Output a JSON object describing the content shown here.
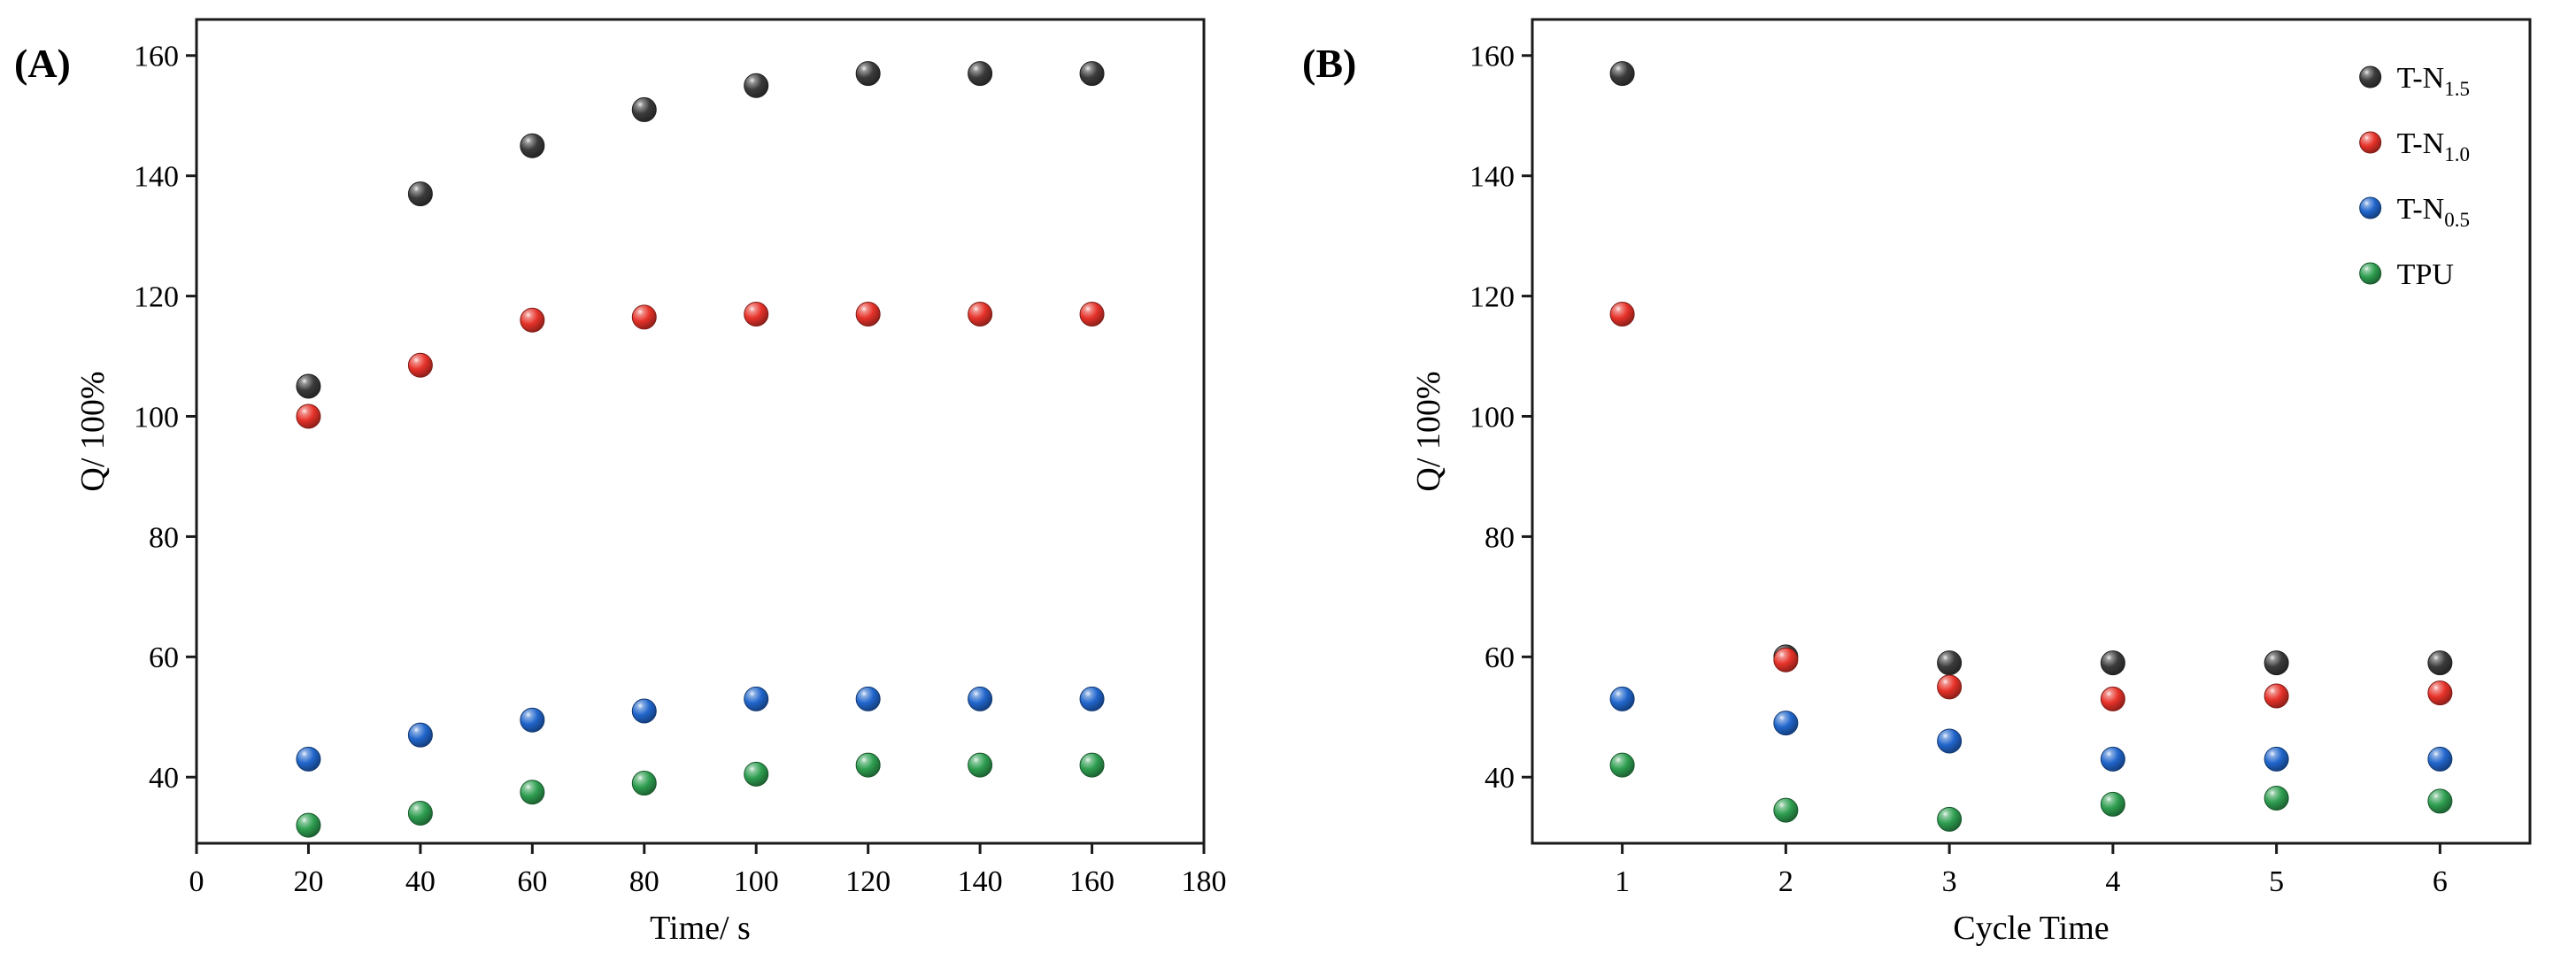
{
  "figure": {
    "background": "#ffffff",
    "axis_color": "#1a1a1a"
  },
  "chart_data": [
    {
      "id": "A",
      "type": "scatter",
      "panel_label": "(A)",
      "title": "",
      "xlabel": "Time/ s",
      "ylabel": "Q/ 100%",
      "xlim": [
        0,
        180
      ],
      "ylim": [
        29,
        166
      ],
      "xticks": [
        0,
        20,
        40,
        60,
        80,
        100,
        120,
        140,
        160,
        180
      ],
      "yticks": [
        40,
        60,
        80,
        100,
        120,
        140,
        160
      ],
      "grid": false,
      "show_legend": false,
      "marker": "sphere",
      "x": [
        20,
        40,
        60,
        80,
        100,
        120,
        140,
        160
      ],
      "series": [
        {
          "name": "T-N1.5",
          "label_base": "T-N",
          "label_sub": "1.5",
          "color": "#3b3b3b",
          "values": [
            105,
            137,
            145,
            151,
            155,
            157,
            157,
            157
          ]
        },
        {
          "name": "T-N1.0",
          "label_base": "T-N",
          "label_sub": "1.0",
          "color": "#e63229",
          "values": [
            100,
            108.5,
            116,
            116.5,
            117,
            117,
            117,
            117
          ]
        },
        {
          "name": "T-N0.5",
          "label_base": "T-N",
          "label_sub": "0.5",
          "color": "#2166cc",
          "values": [
            43,
            47,
            49.5,
            51,
            53,
            53,
            53,
            53
          ]
        },
        {
          "name": "TPU",
          "label_base": "TPU",
          "label_sub": "",
          "color": "#2e9e50",
          "values": [
            32,
            34,
            37.5,
            39,
            40.5,
            42,
            42,
            42
          ]
        }
      ]
    },
    {
      "id": "B",
      "type": "scatter",
      "panel_label": "(B)",
      "title": "",
      "xlabel": "Cycle Time",
      "ylabel": "Q/ 100%",
      "xlim": [
        0.45,
        6.55
      ],
      "ylim": [
        29,
        166
      ],
      "xticks": [
        1,
        2,
        3,
        4,
        5,
        6
      ],
      "yticks": [
        40,
        60,
        80,
        100,
        120,
        140,
        160
      ],
      "grid": false,
      "show_legend": true,
      "legend_position": "top-right",
      "marker": "sphere",
      "x": [
        1,
        2,
        3,
        4,
        5,
        6
      ],
      "series": [
        {
          "name": "T-N1.5",
          "label_base": "T-N",
          "label_sub": "1.5",
          "color": "#3b3b3b",
          "values": [
            157,
            60,
            59,
            59,
            59,
            59
          ]
        },
        {
          "name": "T-N1.0",
          "label_base": "T-N",
          "label_sub": "1.0",
          "color": "#e63229",
          "values": [
            117,
            59.5,
            55,
            53,
            53.5,
            54
          ]
        },
        {
          "name": "T-N0.5",
          "label_base": "T-N",
          "label_sub": "0.5",
          "color": "#2166cc",
          "values": [
            53,
            49,
            46,
            43,
            43,
            43
          ]
        },
        {
          "name": "TPU",
          "label_base": "TPU",
          "label_sub": "",
          "color": "#2e9e50",
          "values": [
            42,
            34.5,
            33,
            35.5,
            36.5,
            36
          ]
        }
      ]
    }
  ]
}
